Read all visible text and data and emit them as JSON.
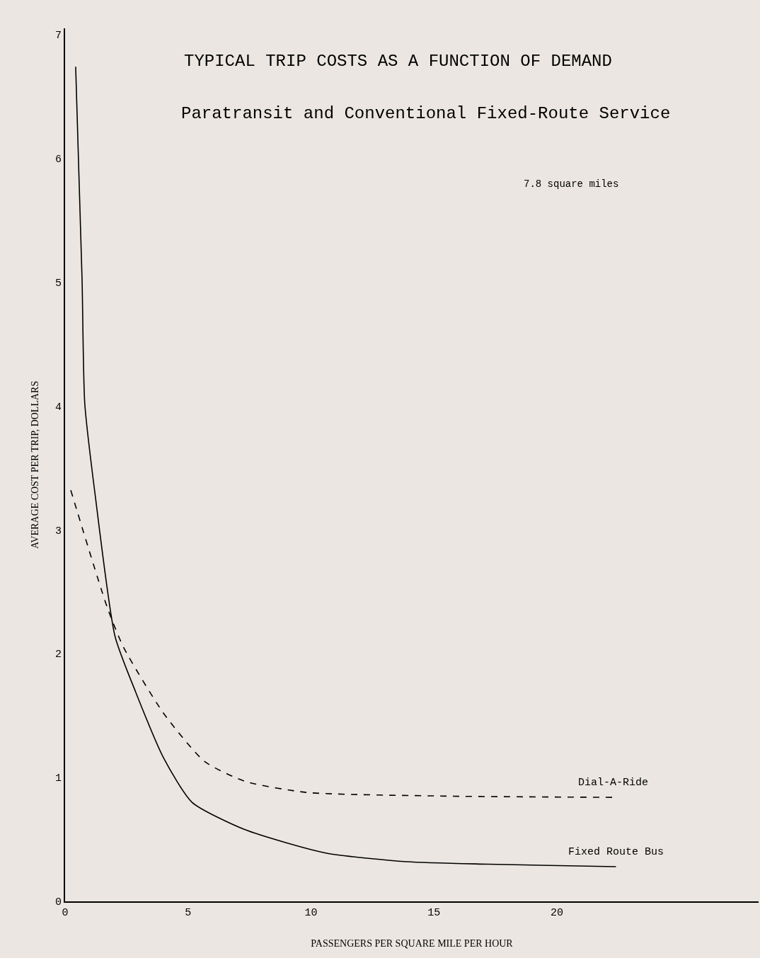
{
  "chart_data": {
    "type": "line",
    "title": "TYPICAL TRIP COSTS AS A FUNCTION OF DEMAND",
    "subtitle": "Paratransit and Conventional Fixed-Route Service",
    "xlabel": "PASSENGERS PER SQUARE MILE PER HOUR",
    "ylabel": "AVERAGE COST PER TRIP, DOLLARS",
    "annotations": [
      "7.8 square miles"
    ],
    "xlim": [
      0,
      28.2
    ],
    "ylim": [
      0,
      7.05
    ],
    "xticks": [
      0,
      5,
      10,
      15,
      20
    ],
    "yticks": [
      0,
      1,
      2,
      3,
      4,
      5,
      6,
      7
    ],
    "grid": false,
    "legend": false,
    "series": [
      {
        "name": "Dial-A-Ride",
        "color": "#000000",
        "line_style": "dashed",
        "x": [
          0.23,
          1.72,
          2.38,
          4.0,
          5.67,
          7.3,
          9.8,
          15.5,
          22.3
        ],
        "values": [
          3.32,
          2.37,
          2.05,
          1.52,
          1.13,
          0.97,
          0.88,
          0.85,
          0.84
        ]
      },
      {
        "name": "Fixed Route Bus",
        "color": "#000000",
        "line_style": "solid",
        "x": [
          0.43,
          0.69,
          0.8,
          1.23,
          2.03,
          2.87,
          4.0,
          5.16,
          7.3,
          10.6,
          13.9,
          17.2,
          22.4
        ],
        "values": [
          6.74,
          5.02,
          4.02,
          3.27,
          2.14,
          1.69,
          1.16,
          0.8,
          0.58,
          0.39,
          0.32,
          0.3,
          0.28
        ]
      }
    ]
  }
}
